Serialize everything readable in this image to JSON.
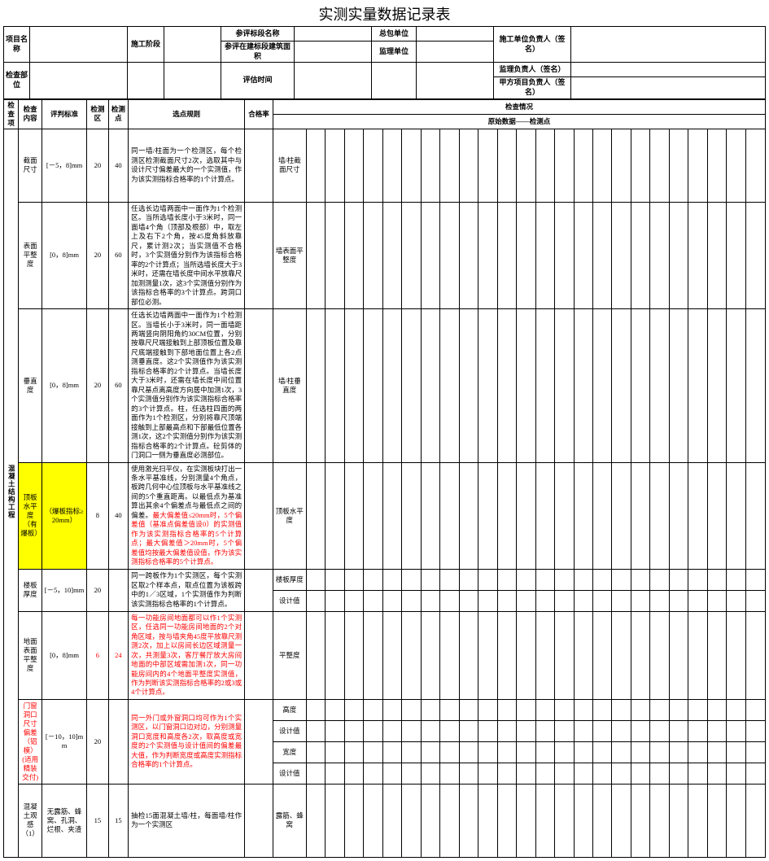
{
  "title": "实测实量数据记录表",
  "headerLabels": {
    "projectName": "项目名称",
    "stage": "施工阶段",
    "sectionName": "参评标段名称",
    "contractor": "总包单位",
    "constLeader": "施工单位负责人（签名）",
    "inspectPart": "检查部位",
    "area": "参评在建标段建筑面积",
    "supervisor": "监理单位",
    "supervisorSign": "监理负责人（签名）",
    "evalTime": "评估时间",
    "ownerSign": "甲方项目负责人（签名）"
  },
  "colHead": {
    "checkItem": "检查项",
    "checkContent": "检查内容",
    "criteria": "评判标准",
    "zone": "检测区",
    "points": "检测点",
    "rule": "选点规则",
    "passRate": "合格率",
    "situation": "检查情况",
    "rawData": "原始数据——检测点"
  },
  "category": "混凝土结构工程",
  "rows": [
    {
      "content": "截面尺寸",
      "criteria": "[－5，8]mm",
      "zone": "20",
      "points": "40",
      "rule": "同一墙/柱面为一个检测区，每个检测区检测截面尺寸2次，选取其中与设计尺寸偏差最大的一个实测值，作为该实测指标合格率的1个计算点。",
      "params": [
        "墙/柱截面尺寸"
      ]
    },
    {
      "content": "表面平整度",
      "criteria": "[0，8]mm",
      "zone": "20",
      "points": "60",
      "rule": "任选长边墙两面中一面作为1个检测区。当所选墙长度小于3米时，同一面墙4个角（顶部及根部）中，取左上及右下2个角，按45度角斜放靠尺，累计测2次；当实测值不合格时，3个实测值分别作为该指标合格率的2个计算点；当所选墙长度大于3米时，还需在墙长度中间水平放靠尺加测测量1次，这3个实测值分别作为该指标合格率的3个计算点。跨洞口部位必测。",
      "params": [
        "墙表面平整度"
      ]
    },
    {
      "content": "垂直度",
      "criteria": "[0，8]mm",
      "zone": "20",
      "points": "60",
      "rule": "任选长边墙两面中一面作为1个检测区。当墙长小于3米时，同一面墙距两端竖向阴阳角约30CM位置，分别按靠尺尺端接触到上部顶板位置及靠尺底端接触到下部地面位置上各2点测垂直度。这2个实测值作为该实测指标合格率的2个计算点。当墙长度大于3米时，还需在墙长度中间位置靠尺基点离高度方向居中加测1次，3个实测值分别作为该实测指标合格率的3个计算点。柱，任选柱四面的两面作为1个检测区，分别将靠尺顶端接触到上部最高点和下部最低位置各测1次，这2个实测值分别作为该实测指标合格率的2个计算点。砼剪体的门洞口一侧为垂直度必测部位。",
      "params": [
        "墙/柱垂直度"
      ]
    },
    {
      "content": "顶板水平度（有爆板）",
      "criteria": "（爆板指标≥20mm）",
      "zone": "8",
      "points": "40",
      "highlight": true,
      "rule_pre": "使用激光扫平仪，在实测板块打出一条水平基准线，分别测量4个角点，板跨几何中心位顶板与水平基准线之间的5个重直距离。以最低点为基准算出其余4个偏差点与最低点之间的偏差。",
      "rule_red": "最大偏差值≤20mm时，5个偏差值（基准点偏差值设0）的实测值作为该实测指标合格率的5个计算点；最大偏差值＞20mm时，5个偏差值均按最大偏差值设值，作为该实测指标合格率的5个计算点。",
      "params": [
        "顶板水平度"
      ]
    },
    {
      "content": "楼板厚度",
      "criteria": "[－5，10]mm",
      "zone": "20",
      "points": "",
      "rule": "同一跨板作为1个实测区，每个实测区取2个样本点，取点位置为该板跨中的1／3区域，1个实测值作为判断该实测指标合格率的1个计算点。",
      "params": [
        "楼板厚度",
        "设计值"
      ]
    },
    {
      "content": "地面表面平整度",
      "criteria": "[0，8]mm",
      "zone": "6",
      "points": "24",
      "red": true,
      "rule": "每一功能房间地面都可以作1个实测区，任选同一功能房间地面的2个对角区域，按与墙夹角45度平放靠尺测测2次，加上以房间长边区域测量一次，共测量3次，客厅餐厅放大房间地面的中部区域需加测1次，同一功能房间内的4个地面平整度实测值，作为判断该实测指标合格率的2或3或4个计算点。",
      "params": [
        "平整度"
      ]
    },
    {
      "content": "门窗洞口尺寸偏差（铝模）(适用精装交付)",
      "criteria": "[－10，10]mm",
      "zone": "20",
      "points": "",
      "redContent": true,
      "rule": "同一外门或外窗洞口均可作为1个实测区，以门窗洞口边对边，分别测量洞口宽度和高度各2次，取高度或宽度的2个实测值与设计值间的偏差最大值，作为判断宽度或高度实测指标合格率的1个计算点。",
      "rule_red": true,
      "params": [
        "高度",
        "设计值",
        "宽度",
        "设计值"
      ]
    },
    {
      "content": "混凝土观感（1）",
      "criteria": "无露筋、蜂窝、孔洞、烂根、夹渣",
      "zone": "15",
      "points": "15",
      "rule": "抽检15面混凝土墙/柱，每面墙/柱作为一个实测区",
      "params": [
        "露筋、蜂窝"
      ]
    }
  ]
}
